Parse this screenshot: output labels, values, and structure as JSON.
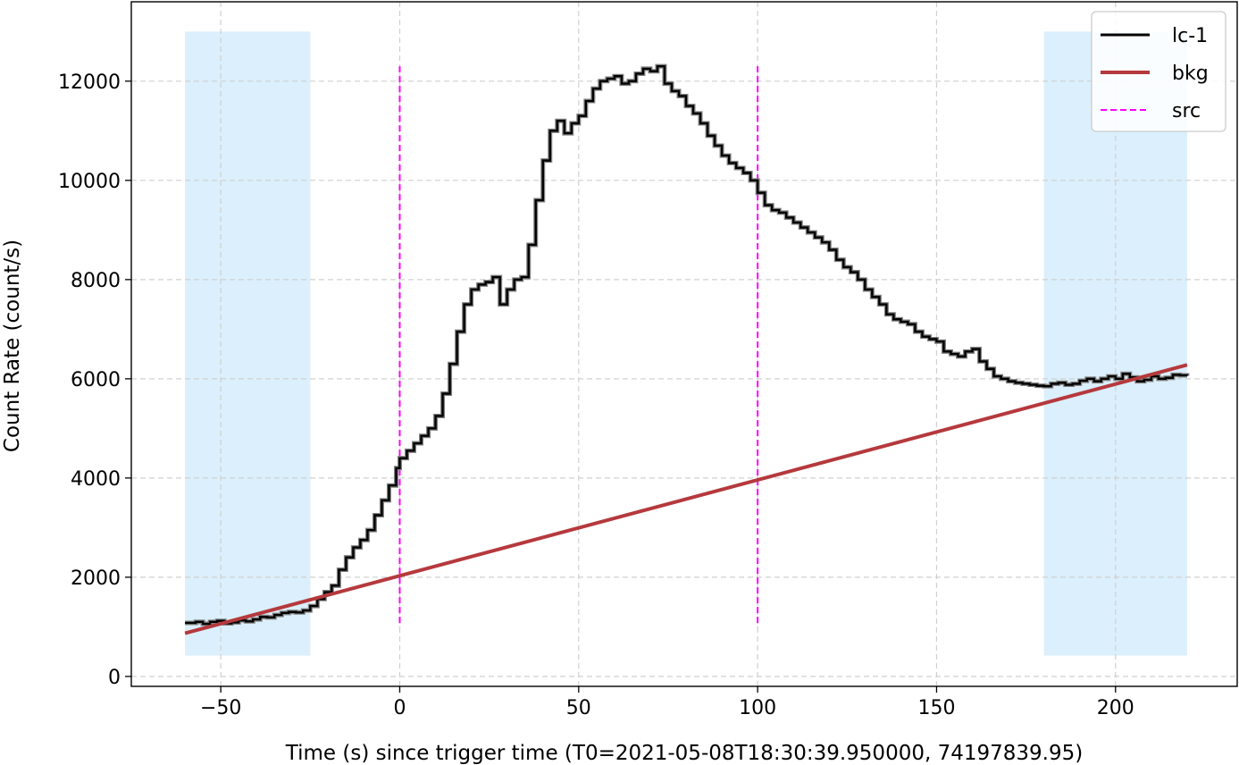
{
  "chart_data": {
    "type": "line",
    "title": "",
    "xlabel": "Time (s) since trigger time (T0=2021-05-08T18:30:39.950000, 74197839.95)",
    "ylabel": "Count Rate (count/s)",
    "xlim": [
      -75,
      234
    ],
    "ylim": [
      -200,
      13600
    ],
    "xticks": [
      -50,
      0,
      50,
      100,
      150,
      200
    ],
    "xtick_labels": [
      "−50",
      "0",
      "50",
      "100",
      "150",
      "200"
    ],
    "yticks": [
      0,
      2000,
      4000,
      6000,
      8000,
      10000,
      12000
    ],
    "ytick_labels": [
      "0",
      "2000",
      "4000",
      "6000",
      "8000",
      "10000",
      "12000"
    ],
    "grid": true,
    "legend_position": "top-right",
    "colors": {
      "lc": "#000000",
      "lc_err": "#808080",
      "bkg": "#b5393d",
      "src": "#ff00ff",
      "region": "#dbeffc",
      "grid": "#d0d0d0"
    },
    "background_intervals": [
      [
        -60,
        -25
      ],
      [
        180,
        220
      ]
    ],
    "background_interval_yrange": [
      420,
      13000
    ],
    "source_interval": [
      0,
      100
    ],
    "source_line_yrange": [
      1000,
      12300
    ],
    "series": [
      {
        "name": "lc-1",
        "style": "step",
        "x": [
          -60,
          -57,
          -55,
          -53,
          -51,
          -49,
          -47,
          -45,
          -43,
          -41,
          -39,
          -37,
          -35,
          -33,
          -31,
          -29,
          -27,
          -25,
          -23,
          -21,
          -19,
          -17,
          -15,
          -13,
          -11,
          -9,
          -7,
          -5,
          -3,
          -1,
          0,
          2,
          4,
          6,
          8,
          10,
          12,
          14,
          16,
          18,
          20,
          22,
          24,
          26,
          28,
          30,
          32,
          34,
          36,
          38,
          40,
          42,
          44,
          46,
          48,
          50,
          52,
          54,
          56,
          58,
          60,
          62,
          64,
          66,
          68,
          70,
          72,
          74,
          76,
          78,
          80,
          82,
          84,
          86,
          88,
          90,
          92,
          94,
          96,
          98,
          100,
          102,
          104,
          106,
          108,
          110,
          112,
          114,
          116,
          118,
          120,
          122,
          124,
          126,
          128,
          130,
          132,
          134,
          136,
          138,
          140,
          142,
          144,
          146,
          148,
          150,
          152,
          154,
          156,
          158,
          160,
          162,
          164,
          166,
          168,
          170,
          172,
          174,
          176,
          178,
          180,
          182,
          184,
          186,
          188,
          190,
          192,
          194,
          196,
          198,
          200,
          202,
          204,
          206,
          208,
          210,
          212,
          214,
          216,
          218,
          220
        ],
        "y": [
          1080,
          1100,
          1060,
          1100,
          1120,
          1070,
          1090,
          1130,
          1110,
          1150,
          1200,
          1190,
          1240,
          1280,
          1300,
          1290,
          1330,
          1420,
          1560,
          1700,
          1830,
          2150,
          2400,
          2600,
          2750,
          2950,
          3250,
          3550,
          3850,
          4200,
          4400,
          4550,
          4700,
          4850,
          5000,
          5250,
          5700,
          6300,
          6950,
          7500,
          7800,
          7900,
          7950,
          8050,
          7500,
          7800,
          8000,
          8050,
          8700,
          9600,
          10400,
          11000,
          11200,
          10950,
          11150,
          11300,
          11600,
          11850,
          12000,
          12050,
          12100,
          11950,
          12000,
          12150,
          12250,
          12200,
          12300,
          11950,
          11800,
          11700,
          11500,
          11350,
          11150,
          10900,
          10700,
          10500,
          10350,
          10250,
          10150,
          10000,
          9750,
          9500,
          9400,
          9350,
          9250,
          9150,
          9050,
          8950,
          8850,
          8750,
          8600,
          8400,
          8250,
          8150,
          8000,
          7800,
          7650,
          7500,
          7300,
          7200,
          7150,
          7100,
          6950,
          6850,
          6800,
          6750,
          6550,
          6500,
          6450,
          6550,
          6600,
          6350,
          6200,
          6050,
          6000,
          5950,
          5920,
          5900,
          5880,
          5860,
          5850,
          5900,
          5920,
          5880,
          5900,
          5960,
          6000,
          5950,
          6000,
          6050,
          6000,
          6100,
          6030,
          5950,
          5980,
          6050,
          6000,
          6020,
          6080,
          6070,
          6060
        ]
      },
      {
        "name": "bkg",
        "style": "line",
        "x": [
          -60,
          220
        ],
        "y": [
          870,
          6280
        ]
      },
      {
        "name": "src",
        "style": "vline",
        "x": [
          0,
          100
        ]
      }
    ]
  }
}
